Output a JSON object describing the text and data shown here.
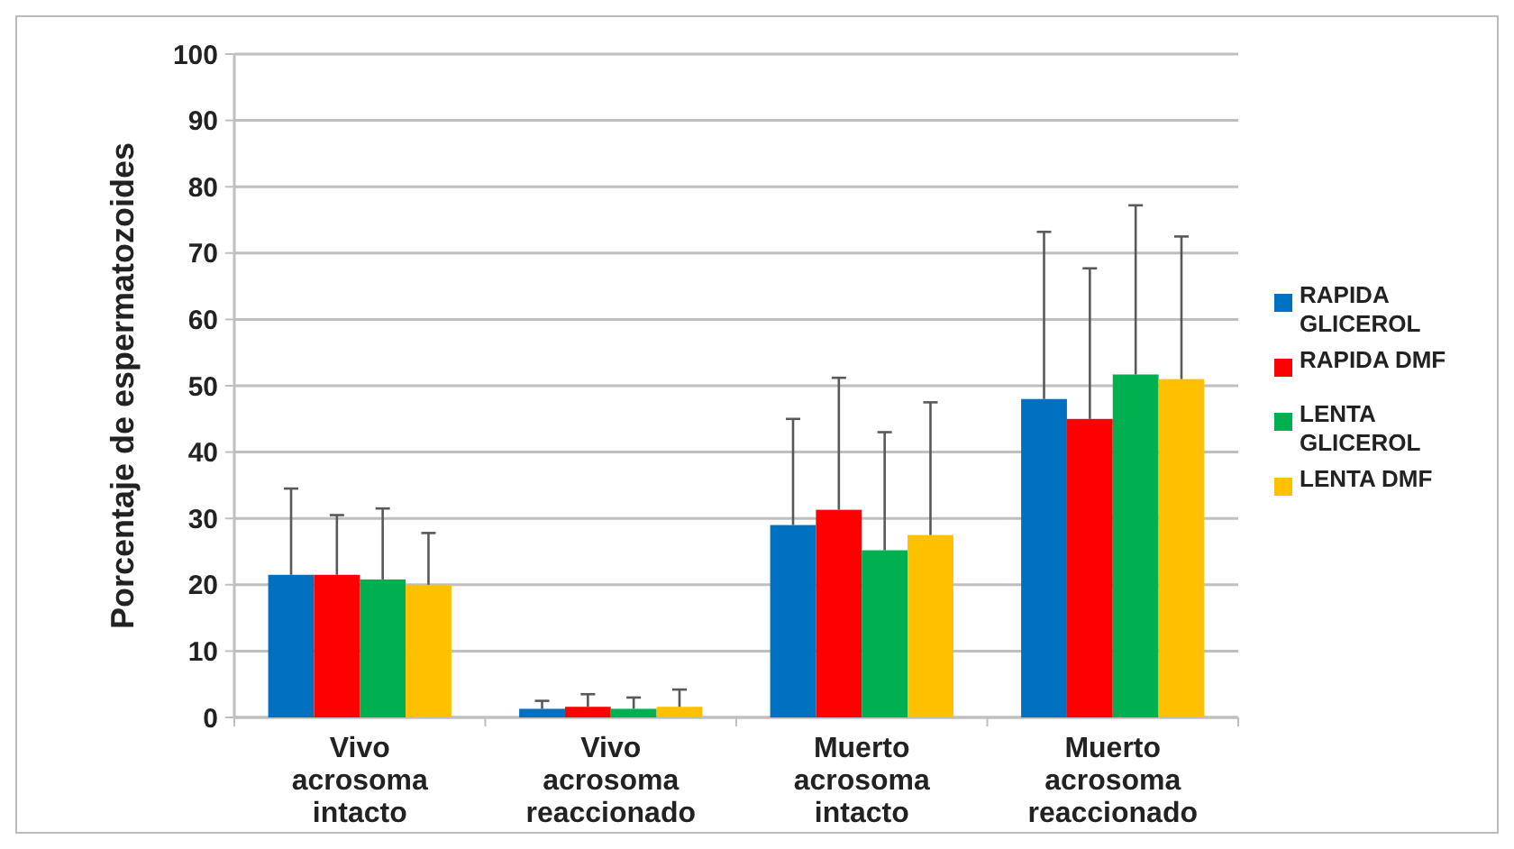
{
  "chart_data": {
    "type": "bar",
    "ylabel": "Porcentaje de espermatozoides",
    "categories": [
      "Vivo acrosoma intacto",
      "Vivo acrosoma reaccionado",
      "Muerto acrosoma intacto",
      "Muerto acrosoma reaccionado"
    ],
    "series": [
      {
        "name": "RAPIDA GLICEROL",
        "color": "#0070c0",
        "values": [
          21.5,
          1.3,
          29,
          48
        ],
        "errors": [
          [
            21.5,
            34.5
          ],
          [
            1.3,
            2.5
          ],
          [
            29,
            45
          ],
          [
            48,
            73.2
          ]
        ]
      },
      {
        "name": "RAPIDA DMF",
        "color": "#ff0000",
        "values": [
          21.5,
          1.6,
          31.3,
          45
        ],
        "errors": [
          [
            21.5,
            30.5
          ],
          [
            1.6,
            3.5
          ],
          [
            31.3,
            51.2
          ],
          [
            45,
            67.7
          ]
        ]
      },
      {
        "name": "LENTA GLICEROL",
        "color": "#00b050",
        "values": [
          20.8,
          1.3,
          25.2,
          51.7
        ],
        "errors": [
          [
            20.8,
            31.5
          ],
          [
            1.3,
            3
          ],
          [
            25.2,
            43
          ],
          [
            51.7,
            77.2
          ]
        ]
      },
      {
        "name": "LENTA DMF",
        "color": "#ffc000",
        "values": [
          20,
          1.6,
          27.5,
          51
        ],
        "errors": [
          [
            20,
            27.8
          ],
          [
            1.6,
            4.2
          ],
          [
            27.5,
            47.5
          ],
          [
            51,
            72.5
          ]
        ]
      }
    ],
    "ylim": [
      0,
      100
    ],
    "yticks": [
      0,
      10,
      20,
      30,
      40,
      50,
      60,
      70,
      80,
      90,
      100
    ],
    "grid": "y",
    "legend": "right"
  }
}
